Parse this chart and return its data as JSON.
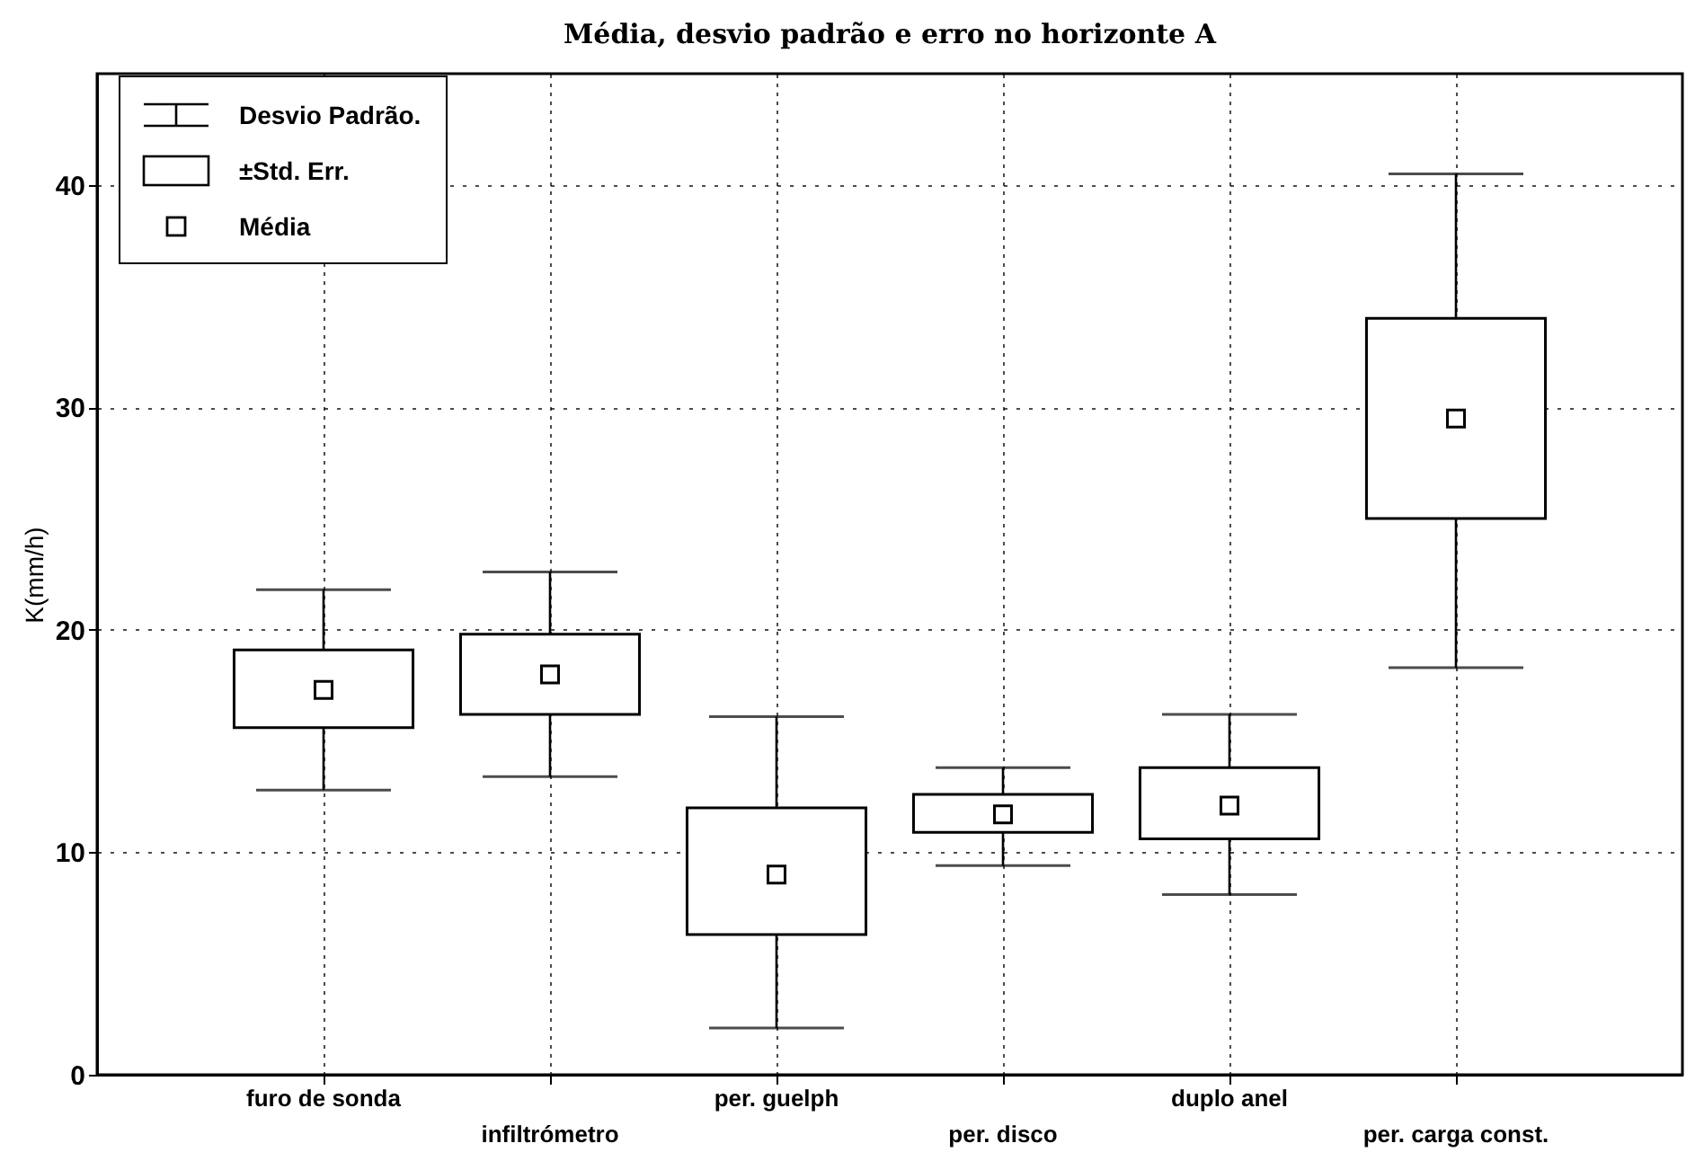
{
  "chart_data": {
    "type": "box",
    "title": "Média, desvio padrão e erro no horizonte A",
    "ylabel": "K(mm/h)",
    "categories": [
      "furo de sonda",
      "infiltrómetro",
      "per. guelph",
      "per. disco",
      "duplo anel",
      "per. carga const."
    ],
    "boxes": [
      {
        "low": 12.8,
        "q1": 15.6,
        "q3": 19.1,
        "high": 21.8,
        "mean": 17.3
      },
      {
        "low": 13.4,
        "q1": 16.2,
        "q3": 19.8,
        "high": 22.6,
        "mean": 18.0
      },
      {
        "low": 2.1,
        "q1": 6.3,
        "q3": 12.0,
        "high": 16.1,
        "mean": 9.0
      },
      {
        "low": 9.4,
        "q1": 10.9,
        "q3": 12.6,
        "high": 13.8,
        "mean": 11.7
      },
      {
        "low": 8.1,
        "q1": 10.6,
        "q3": 13.8,
        "high": 16.2,
        "mean": 12.1
      },
      {
        "low": 18.3,
        "q1": 25.0,
        "q3": 34.0,
        "high": 40.5,
        "mean": 29.5
      }
    ],
    "ylim": [
      0,
      45
    ],
    "yticks": [
      0,
      10,
      20,
      30,
      40
    ],
    "grid": true,
    "marker": "square",
    "annotations": [
      "Desvio Padrão.",
      "±Std. Err.",
      "Média"
    ]
  }
}
